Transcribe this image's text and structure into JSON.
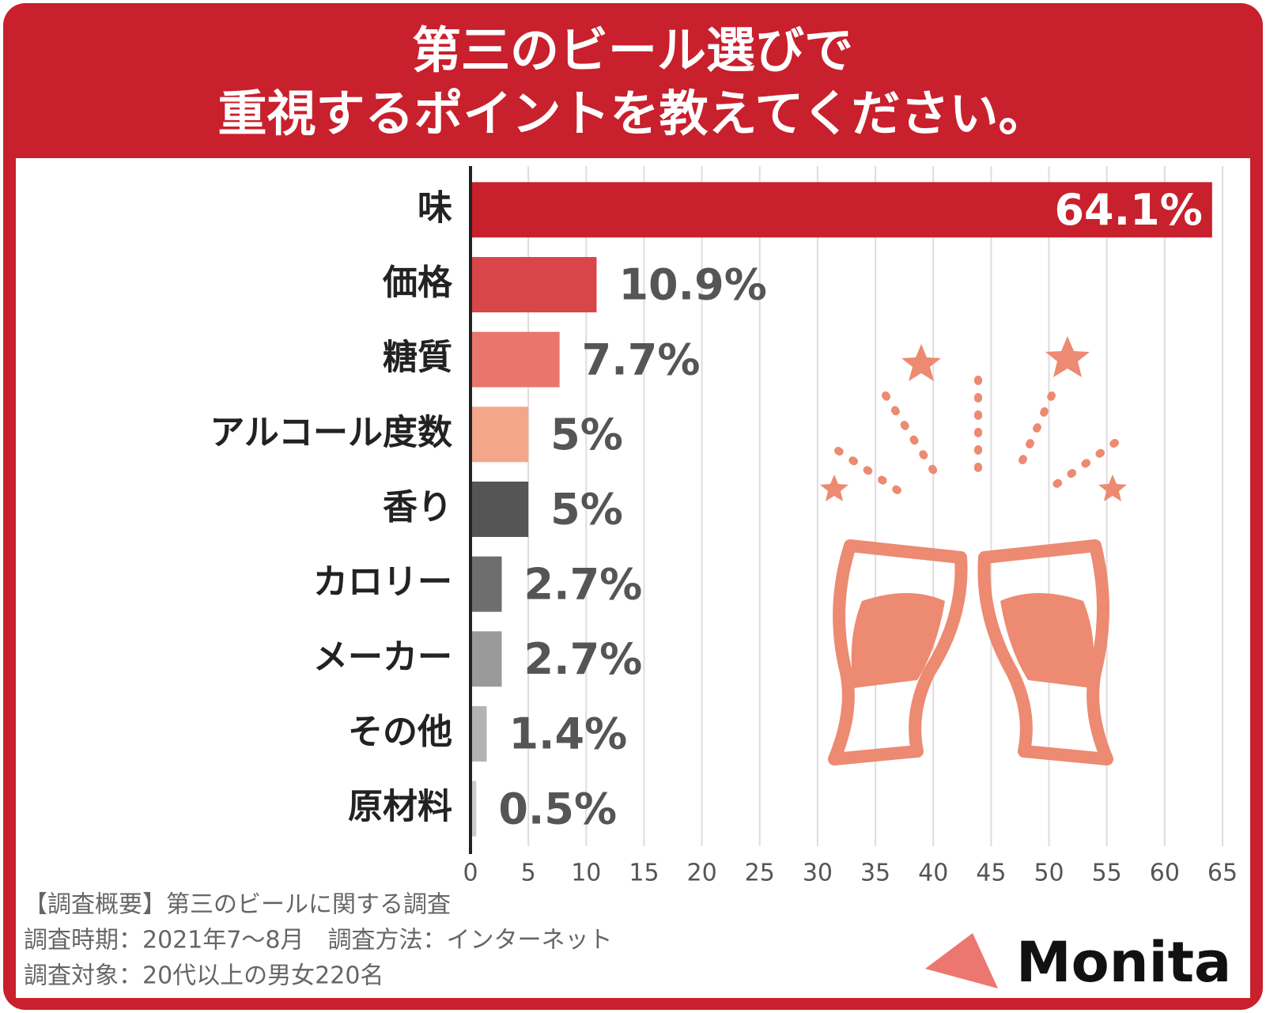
{
  "chart_data": {
    "type": "barh",
    "title": [
      "第三のビール選びで",
      "重視するポイントを教えてください。"
    ],
    "categories": [
      "味",
      "価格",
      "糖質",
      "アルコール度数",
      "香り",
      "カロリー",
      "メーカー",
      "その他",
      "原材料"
    ],
    "values": [
      64.1,
      10.9,
      7.7,
      5,
      5,
      2.7,
      2.7,
      1.4,
      0.5
    ],
    "value_labels": [
      "64.1%",
      "10.9%",
      "7.7%",
      "5%",
      "5%",
      "2.7%",
      "2.7%",
      "1.4%",
      "0.5%"
    ],
    "colors": [
      "#c8202c",
      "#d9464a",
      "#e8766c",
      "#f3a68a",
      "#555555",
      "#6e6e6e",
      "#9a9a9a",
      "#b3b3b3",
      "#cbcbcb"
    ],
    "xlim": [
      0,
      65
    ],
    "xticks": [
      0,
      5,
      10,
      15,
      20,
      25,
      30,
      35,
      40,
      45,
      50,
      55,
      60,
      65
    ],
    "grid": true,
    "notes": [
      "【調査概要】第三のビールに関する調査",
      "調査時期：2021年7～8月　調査方法：インターネット",
      "調査対象：20代以上の男女220名"
    ],
    "brand": "Monita"
  }
}
